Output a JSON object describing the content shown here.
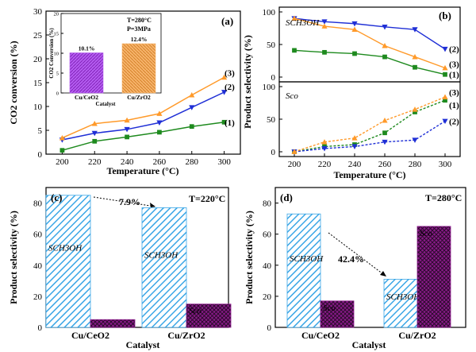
{
  "colors": {
    "green": "#1e8a1e",
    "blue": "#1f2fd6",
    "orange": "#ff9a2a",
    "purple": "#a020c8",
    "purple_bar": "#b45cf0",
    "orange_bar": "#f6b36a",
    "cyan": "#3aa6e6",
    "magenta": "#8a1a8a"
  },
  "chart_data": [
    {
      "panel": "a",
      "type": "line",
      "panel_label": "(a)",
      "xlabel": "Temperature (°C)",
      "ylabel": "CO2 conversion (%)",
      "x": [
        200,
        220,
        240,
        260,
        280,
        300
      ],
      "xlim": [
        190,
        310
      ],
      "ylim": [
        0,
        30
      ],
      "yticks": [
        0,
        5,
        10,
        15,
        20,
        25,
        30
      ],
      "series": [
        {
          "name": "(1)",
          "values": [
            0.8,
            2.7,
            3.6,
            4.6,
            5.8,
            6.7
          ],
          "color": "green",
          "marker": "square"
        },
        {
          "name": "(2)",
          "values": [
            3.0,
            4.4,
            5.2,
            6.6,
            9.8,
            13.0
          ],
          "color": "blue",
          "marker": "triangle-down"
        },
        {
          "name": "(3)",
          "values": [
            3.4,
            6.4,
            7.1,
            8.5,
            12.4,
            16.1
          ],
          "color": "orange",
          "marker": "triangle-up"
        }
      ],
      "inset": {
        "type": "bar",
        "categories": [
          "Cu/CeO2",
          "Cu/ZrO2"
        ],
        "values": [
          10.1,
          12.4
        ],
        "data_labels": [
          "10.1%",
          "12.4%"
        ],
        "ylabel": "CO2 Conversion (%)",
        "xlabel": "Catalyst",
        "ylim": [
          0,
          20
        ],
        "yticks": [
          0,
          5,
          10,
          15,
          20
        ],
        "note_t": "T=280°C",
        "note_p": "P=3MPa",
        "colors": [
          "purple_bar",
          "orange_bar"
        ]
      }
    },
    {
      "panel": "b",
      "type": "line",
      "panel_label": "(b)",
      "xlabel": "Temperature (°C)",
      "ylabel": "Product selectivity (%)",
      "x": [
        200,
        220,
        240,
        260,
        280,
        300
      ],
      "xlim": [
        190,
        310
      ],
      "top": {
        "label": "SCH3OH",
        "ylim": [
          0,
          100
        ],
        "yticks": [
          0,
          50,
          100
        ],
        "series": [
          {
            "name": "(1)",
            "values": [
              41,
              38,
              36,
              31,
              15,
              4
            ],
            "color": "green",
            "marker": "square"
          },
          {
            "name": "(2)",
            "values": [
              90,
              85,
              82,
              77,
              73,
              43
            ],
            "color": "blue",
            "marker": "triangle-down"
          },
          {
            "name": "(3)",
            "values": [
              90,
              78,
              73,
              48,
              31,
              14
            ],
            "color": "orange",
            "marker": "triangle-up"
          }
        ]
      },
      "bottom": {
        "label": "Sco",
        "ylim": [
          0,
          100
        ],
        "yticks": [
          0,
          50,
          100
        ],
        "series": [
          {
            "name": "(1)",
            "values": [
              0,
              8,
              11,
              29,
              61,
              79
            ],
            "color": "green",
            "marker": "square"
          },
          {
            "name": "(2)",
            "values": [
              0,
              5,
              8,
              15,
              18,
              47
            ],
            "color": "blue",
            "marker": "triangle-down"
          },
          {
            "name": "(3)",
            "values": [
              0,
              15,
              21,
              48,
              65,
              84
            ],
            "color": "orange",
            "marker": "triangle-up"
          }
        ]
      }
    },
    {
      "panel": "c",
      "type": "bar",
      "panel_label": "(c)",
      "note": "T=220°C",
      "xlabel": "Catalyst",
      "ylabel": "Product selectivity (%)",
      "categories": [
        "Cu/CeO2",
        "Cu/ZrO2"
      ],
      "ylim": [
        0,
        90
      ],
      "yticks": [
        0,
        20,
        40,
        60,
        80
      ],
      "series": [
        {
          "name": "SCH3OH",
          "values": [
            85,
            77
          ],
          "color": "cyan"
        },
        {
          "name": "Sco",
          "values": [
            5,
            15
          ],
          "color": "magenta"
        }
      ],
      "annotation": "7.9%"
    },
    {
      "panel": "d",
      "type": "bar",
      "panel_label": "(d)",
      "note": "T=280°C",
      "xlabel": "Catalyst",
      "ylabel": "Product selectivity (%)",
      "categories": [
        "Cu/CeO2",
        "Cu/ZrO2"
      ],
      "ylim": [
        0,
        90
      ],
      "yticks": [
        0,
        20,
        40,
        60,
        80
      ],
      "series": [
        {
          "name": "SCH3OH",
          "values": [
            73,
            31
          ],
          "color": "cyan"
        },
        {
          "name": "Sco",
          "values": [
            17,
            65
          ],
          "color": "magenta"
        }
      ],
      "annotation": "42.4%"
    }
  ]
}
